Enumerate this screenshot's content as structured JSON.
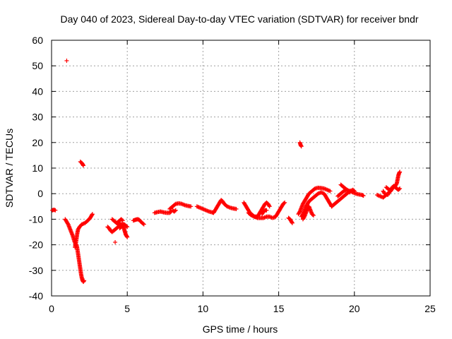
{
  "chart_data": {
    "type": "scatter",
    "title": "Day 040 of 2023, Sidereal Day-to-day VTEC variation (SDTVAR) for receiver bndr",
    "xlabel": "GPS time / hours",
    "ylabel": "SDTVAR / TECUs",
    "xlim": [
      0,
      25
    ],
    "ylim": [
      -40,
      60
    ],
    "xticks": [
      0,
      5,
      10,
      15,
      20,
      25
    ],
    "yticks": [
      -40,
      -30,
      -20,
      -10,
      0,
      10,
      20,
      30,
      40,
      50,
      60
    ],
    "grid": true,
    "marker": "+",
    "colors": {
      "series": "#ff0000",
      "grid": "#a0a0a0",
      "axis": "#000000"
    },
    "series": [
      {
        "segments": [
          [
            [
              0.05,
              -6.5
            ],
            [
              0.15,
              -6.3
            ],
            [
              0.25,
              -6.5
            ]
          ],
          [
            [
              1.0,
              52.0
            ]
          ],
          [
            [
              0.9,
              -10.0
            ],
            [
              1.0,
              -11.0
            ],
            [
              1.1,
              -12.0
            ],
            [
              1.2,
              -13.5
            ],
            [
              1.3,
              -15.0
            ],
            [
              1.4,
              -16.5
            ],
            [
              1.5,
              -18.5
            ],
            [
              1.6,
              -20.0
            ]
          ],
          [
            [
              1.55,
              -21.0
            ],
            [
              1.6,
              -19.5
            ],
            [
              1.65,
              -17.5
            ],
            [
              1.7,
              -15.5
            ],
            [
              1.75,
              -14.0
            ],
            [
              1.85,
              -13.0
            ],
            [
              2.0,
              -12.0
            ],
            [
              2.2,
              -11.5
            ],
            [
              2.4,
              -10.5
            ],
            [
              2.55,
              -9.5
            ],
            [
              2.65,
              -8.5
            ],
            [
              2.7,
              -8.0
            ]
          ],
          [
            [
              1.65,
              -20.0
            ],
            [
              1.7,
              -21.5
            ],
            [
              1.75,
              -23.5
            ],
            [
              1.8,
              -25.5
            ],
            [
              1.85,
              -27.5
            ],
            [
              1.9,
              -29.5
            ],
            [
              1.95,
              -31.5
            ],
            [
              2.0,
              -33.0
            ],
            [
              2.05,
              -34.0
            ],
            [
              2.1,
              -34.5
            ],
            [
              2.15,
              -34.0
            ]
          ],
          [
            [
              1.9,
              12.5
            ],
            [
              2.0,
              12.0
            ],
            [
              2.05,
              11.5
            ],
            [
              2.1,
              11.0
            ]
          ],
          [
            [
              3.7,
              -13.0
            ],
            [
              3.8,
              -13.5
            ],
            [
              3.9,
              -14.5
            ],
            [
              4.0,
              -15.0
            ],
            [
              4.1,
              -14.5
            ],
            [
              4.2,
              -14.0
            ],
            [
              4.3,
              -13.5
            ],
            [
              4.4,
              -13.0
            ],
            [
              4.5,
              -12.5
            ]
          ],
          [
            [
              4.0,
              -10.0
            ],
            [
              4.1,
              -10.5
            ],
            [
              4.2,
              -11.0
            ],
            [
              4.3,
              -11.5
            ],
            [
              4.4,
              -12.0
            ],
            [
              4.5,
              -12.0
            ],
            [
              4.6,
              -12.0
            ],
            [
              4.7,
              -12.0
            ],
            [
              4.8,
              -12.0
            ],
            [
              4.9,
              -12.5
            ],
            [
              5.0,
              -13.0
            ]
          ],
          [
            [
              4.5,
              -13.5
            ],
            [
              4.6,
              -13.0
            ],
            [
              4.7,
              -12.5
            ],
            [
              4.75,
              -13.0
            ],
            [
              4.8,
              -14.0
            ],
            [
              4.85,
              -15.0
            ],
            [
              4.9,
              -16.0
            ],
            [
              4.95,
              -16.5
            ],
            [
              5.0,
              -17.0
            ]
          ],
          [
            [
              4.3,
              -11.5
            ],
            [
              4.4,
              -11.0
            ],
            [
              4.5,
              -10.5
            ],
            [
              4.6,
              -10.0
            ],
            [
              4.7,
              -10.5
            ]
          ],
          [
            [
              4.2,
              -19.0
            ]
          ],
          [
            [
              5.4,
              -10.5
            ],
            [
              5.5,
              -10.3
            ],
            [
              5.6,
              -10.1
            ],
            [
              5.7,
              -10.0
            ],
            [
              5.8,
              -10.3
            ],
            [
              5.9,
              -11.0
            ],
            [
              6.0,
              -11.5
            ],
            [
              6.1,
              -12.0
            ]
          ],
          [
            [
              6.8,
              -7.5
            ],
            [
              7.0,
              -7.2
            ],
            [
              7.2,
              -7.0
            ],
            [
              7.4,
              -7.3
            ],
            [
              7.6,
              -7.5
            ],
            [
              7.8,
              -7.5
            ],
            [
              7.9,
              -7.0
            ]
          ],
          [
            [
              7.8,
              -6.0
            ],
            [
              8.0,
              -5.0
            ],
            [
              8.2,
              -4.0
            ],
            [
              8.4,
              -3.8
            ],
            [
              8.6,
              -4.0
            ],
            [
              8.8,
              -4.5
            ],
            [
              9.0,
              -4.8
            ],
            [
              9.2,
              -5.0
            ]
          ],
          [
            [
              8.0,
              -6.5
            ],
            [
              8.1,
              -7.0
            ],
            [
              8.2,
              -6.5
            ]
          ],
          [
            [
              9.6,
              -5.0
            ],
            [
              9.8,
              -5.5
            ],
            [
              10.0,
              -6.0
            ],
            [
              10.2,
              -6.5
            ],
            [
              10.4,
              -7.0
            ],
            [
              10.6,
              -7.3
            ],
            [
              10.7,
              -7.5
            ],
            [
              10.8,
              -6.5
            ],
            [
              10.9,
              -5.5
            ],
            [
              11.0,
              -4.5
            ],
            [
              11.1,
              -3.5
            ],
            [
              11.2,
              -2.5
            ],
            [
              11.3,
              -3.0
            ],
            [
              11.4,
              -4.0
            ],
            [
              11.5,
              -4.5
            ],
            [
              11.6,
              -5.0
            ],
            [
              11.8,
              -5.5
            ],
            [
              12.0,
              -5.8
            ],
            [
              12.2,
              -6.0
            ]
          ],
          [
            [
              12.7,
              -3.5
            ],
            [
              12.8,
              -4.5
            ],
            [
              12.9,
              -5.5
            ],
            [
              13.0,
              -6.5
            ],
            [
              13.1,
              -7.5
            ],
            [
              13.2,
              -8.0
            ],
            [
              13.3,
              -8.5
            ],
            [
              13.4,
              -9.0
            ],
            [
              13.5,
              -9.0
            ],
            [
              13.6,
              -9.0
            ],
            [
              13.7,
              -8.0
            ],
            [
              13.8,
              -7.0
            ],
            [
              13.9,
              -6.0
            ],
            [
              14.0,
              -5.0
            ],
            [
              14.1,
              -4.0
            ],
            [
              14.2,
              -3.5
            ],
            [
              14.3,
              -4.0
            ],
            [
              14.4,
              -5.0
            ]
          ],
          [
            [
              13.0,
              -7.5
            ],
            [
              13.2,
              -8.5
            ],
            [
              13.4,
              -9.0
            ],
            [
              13.6,
              -9.5
            ],
            [
              13.8,
              -9.5
            ],
            [
              14.0,
              -9.5
            ],
            [
              14.2,
              -9.0
            ],
            [
              14.4,
              -9.0
            ],
            [
              14.6,
              -9.5
            ],
            [
              14.8,
              -9.0
            ],
            [
              14.9,
              -8.0
            ],
            [
              15.0,
              -7.0
            ],
            [
              15.1,
              -6.0
            ],
            [
              15.2,
              -5.0
            ],
            [
              15.3,
              -4.0
            ],
            [
              15.4,
              -3.5
            ]
          ],
          [
            [
              13.9,
              -8.0
            ],
            [
              14.0,
              -7.0
            ],
            [
              14.1,
              -6.5
            ],
            [
              14.2,
              -6.5
            ]
          ],
          [
            [
              15.65,
              -9.5
            ],
            [
              15.75,
              -10.0
            ],
            [
              15.85,
              -11.0
            ],
            [
              15.9,
              -11.5
            ]
          ],
          [
            [
              16.3,
              -8.0
            ],
            [
              16.4,
              -7.0
            ],
            [
              16.5,
              -5.5
            ],
            [
              16.6,
              -4.0
            ],
            [
              16.7,
              -3.0
            ],
            [
              16.8,
              -2.0
            ],
            [
              16.9,
              -1.0
            ],
            [
              17.0,
              0.0
            ],
            [
              17.2,
              1.0
            ],
            [
              17.4,
              2.0
            ],
            [
              17.6,
              2.3
            ],
            [
              17.8,
              2.2
            ],
            [
              18.0,
              2.0
            ],
            [
              18.2,
              1.5
            ],
            [
              18.4,
              1.0
            ]
          ],
          [
            [
              16.5,
              -9.0
            ],
            [
              16.6,
              -8.0
            ],
            [
              16.7,
              -6.5
            ],
            [
              16.8,
              -5.0
            ],
            [
              16.9,
              -4.0
            ],
            [
              17.0,
              -3.0
            ],
            [
              17.2,
              -2.0
            ],
            [
              17.4,
              -1.0
            ],
            [
              17.6,
              0.0
            ],
            [
              17.8,
              0.5
            ],
            [
              18.0,
              0.0
            ],
            [
              18.1,
              -1.0
            ],
            [
              18.2,
              -2.0
            ],
            [
              18.3,
              -3.0
            ],
            [
              18.4,
              -4.0
            ],
            [
              18.5,
              -5.0
            ]
          ],
          [
            [
              16.6,
              -10.0
            ],
            [
              16.7,
              -9.0
            ],
            [
              16.8,
              -7.5
            ],
            [
              16.9,
              -6.0
            ],
            [
              17.0,
              -5.0
            ],
            [
              17.1,
              -6.5
            ],
            [
              17.2,
              -8.0
            ],
            [
              17.3,
              -8.5
            ]
          ],
          [
            [
              16.4,
              20.0
            ],
            [
              16.45,
              19.0
            ],
            [
              16.5,
              18.5
            ]
          ],
          [
            [
              18.5,
              -5.0
            ],
            [
              18.7,
              -4.0
            ],
            [
              18.9,
              -3.0
            ],
            [
              19.1,
              -2.0
            ],
            [
              19.3,
              -1.0
            ],
            [
              19.5,
              0.0
            ],
            [
              19.7,
              1.0
            ],
            [
              19.9,
              1.5
            ],
            [
              20.0,
              1.0
            ]
          ],
          [
            [
              18.9,
              -1.0
            ],
            [
              19.1,
              0.0
            ],
            [
              19.3,
              1.0
            ],
            [
              19.5,
              1.5
            ],
            [
              19.7,
              1.0
            ],
            [
              19.9,
              0.5
            ],
            [
              20.1,
              0.0
            ],
            [
              20.3,
              -0.3
            ],
            [
              20.5,
              -0.5
            ],
            [
              20.6,
              -0.8
            ]
          ],
          [
            [
              19.1,
              3.5
            ],
            [
              19.3,
              2.5
            ],
            [
              19.5,
              1.5
            ],
            [
              19.7,
              0.5
            ]
          ],
          [
            [
              21.5,
              -0.5
            ],
            [
              21.7,
              -1.0
            ],
            [
              21.9,
              -1.5
            ],
            [
              22.0,
              -1.0
            ],
            [
              22.2,
              0.0
            ],
            [
              22.4,
              1.0
            ],
            [
              22.5,
              2.0
            ],
            [
              22.6,
              2.5
            ],
            [
              22.7,
              3.0
            ],
            [
              22.8,
              4.0
            ],
            [
              22.85,
              5.5
            ],
            [
              22.9,
              7.0
            ],
            [
              22.95,
              8.0
            ],
            [
              23.0,
              8.5
            ]
          ],
          [
            [
              22.2,
              -0.5
            ],
            [
              22.3,
              0.5
            ],
            [
              22.4,
              1.5
            ],
            [
              22.5,
              2.5
            ],
            [
              22.6,
              3.0
            ],
            [
              22.7,
              2.5
            ],
            [
              22.8,
              2.0
            ],
            [
              22.9,
              1.5
            ],
            [
              23.0,
              2.0
            ]
          ],
          [
            [
              22.1,
              2.5
            ],
            [
              22.2,
              2.0
            ],
            [
              22.3,
              1.5
            ]
          ],
          [
            [
              21.9,
              1.0
            ],
            [
              22.0,
              0.0
            ]
          ]
        ]
      }
    ]
  }
}
